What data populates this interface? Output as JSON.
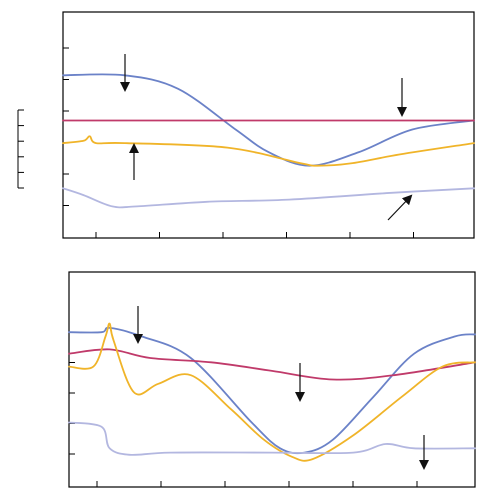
{
  "colors": {
    "blue": "#6b82c8",
    "red": "#c03a6a",
    "orange": "#f0b429",
    "lavender": "#b3b7e0",
    "frame": "#000000",
    "arrow": "#111111"
  },
  "chart_data": [
    {
      "type": "line",
      "panel": "top",
      "x_tick_count": 6,
      "y_tick_count": 6,
      "scale_bar_ticks": 6,
      "series": [
        {
          "color_key": "blue",
          "points": [
            [
              0,
              72
            ],
            [
              0.15,
              72
            ],
            [
              0.28,
              66
            ],
            [
              0.42,
              48
            ],
            [
              0.5,
              38
            ],
            [
              0.6,
              32
            ],
            [
              0.72,
              38
            ],
            [
              0.85,
              48
            ],
            [
              1,
              52
            ]
          ]
        },
        {
          "color_key": "red",
          "points": [
            [
              0,
              52
            ],
            [
              1,
              52
            ]
          ]
        },
        {
          "color_key": "orange",
          "points": [
            [
              0,
              42
            ],
            [
              0.05,
              43
            ],
            [
              0.065,
              45
            ],
            [
              0.08,
              42
            ],
            [
              0.15,
              42
            ],
            [
              0.4,
              40
            ],
            [
              0.58,
              33
            ],
            [
              0.62,
              32
            ],
            [
              0.7,
              33
            ],
            [
              0.82,
              37
            ],
            [
              1,
              42
            ]
          ]
        },
        {
          "color_key": "lavender",
          "points": [
            [
              0,
              22
            ],
            [
              0.05,
              19
            ],
            [
              0.12,
              14
            ],
            [
              0.18,
              14
            ],
            [
              0.35,
              16
            ],
            [
              0.55,
              17
            ],
            [
              0.8,
              20
            ],
            [
              1,
              22
            ]
          ]
        }
      ],
      "annotations": [
        {
          "type": "arrow",
          "direction": "down",
          "target_series": "blue",
          "x": 0.14
        },
        {
          "type": "arrow",
          "direction": "down",
          "target_series": "red",
          "x": 0.85
        },
        {
          "type": "arrow",
          "direction": "up",
          "target_series": "orange",
          "x": 0.17
        },
        {
          "type": "arrow",
          "direction": "up-right",
          "target_series": "lavender",
          "x": 0.87
        }
      ]
    },
    {
      "type": "line",
      "panel": "bottom",
      "x_tick_count": 6,
      "y_tick_count": 5,
      "series": [
        {
          "color_key": "blue",
          "points": [
            [
              0,
              72
            ],
            [
              0.08,
              72
            ],
            [
              0.1,
              74
            ],
            [
              0.18,
              70
            ],
            [
              0.3,
              60
            ],
            [
              0.45,
              30
            ],
            [
              0.52,
              18
            ],
            [
              0.58,
              16
            ],
            [
              0.65,
              22
            ],
            [
              0.75,
              42
            ],
            [
              0.85,
              62
            ],
            [
              0.95,
              70
            ],
            [
              1,
              71
            ]
          ]
        },
        {
          "color_key": "red",
          "points": [
            [
              0,
              62
            ],
            [
              0.1,
              64
            ],
            [
              0.2,
              60
            ],
            [
              0.35,
              58
            ],
            [
              0.5,
              54
            ],
            [
              0.65,
              50
            ],
            [
              0.8,
              52
            ],
            [
              1,
              58
            ]
          ]
        },
        {
          "color_key": "orange",
          "points": [
            [
              0,
              56
            ],
            [
              0.06,
              56
            ],
            [
              0.09,
              70
            ],
            [
              0.1,
              76
            ],
            [
              0.11,
              68
            ],
            [
              0.16,
              44
            ],
            [
              0.22,
              48
            ],
            [
              0.3,
              52
            ],
            [
              0.4,
              36
            ],
            [
              0.48,
              22
            ],
            [
              0.55,
              14
            ],
            [
              0.6,
              13
            ],
            [
              0.7,
              24
            ],
            [
              0.82,
              42
            ],
            [
              0.92,
              56
            ],
            [
              1,
              58
            ]
          ]
        },
        {
          "color_key": "lavender",
          "points": [
            [
              0,
              30
            ],
            [
              0.08,
              28
            ],
            [
              0.1,
              18
            ],
            [
              0.15,
              15
            ],
            [
              0.25,
              16
            ],
            [
              0.5,
              16
            ],
            [
              0.7,
              16
            ],
            [
              0.78,
              20
            ],
            [
              0.85,
              18
            ],
            [
              1,
              18
            ]
          ]
        }
      ],
      "annotations": [
        {
          "type": "arrow",
          "direction": "down",
          "target_series": "blue",
          "x": 0.16
        },
        {
          "type": "arrow",
          "direction": "down",
          "target_series": "red",
          "x": 0.56
        },
        {
          "type": "arrow",
          "direction": "down",
          "target_series": "lavender",
          "x": 0.87
        }
      ]
    }
  ]
}
